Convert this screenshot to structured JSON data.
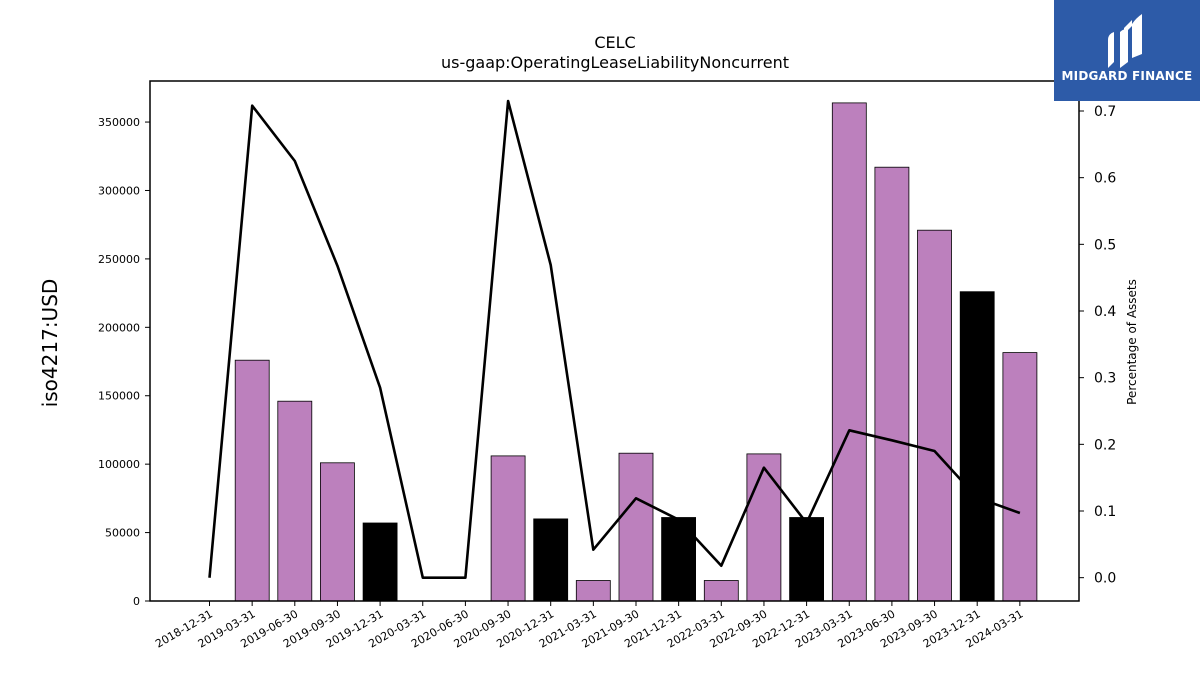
{
  "chart_data": {
    "type": "bar",
    "title": "CELC",
    "subtitle": "us-gaap:OperatingLeaseLiabilityNoncurrent",
    "ylabel": "iso4217:USD",
    "y2label": "Percentage of Assets",
    "categories": [
      "2018-12-31",
      "2019-03-31",
      "2019-06-30",
      "2019-09-30",
      "2019-12-31",
      "2020-03-31",
      "2020-06-30",
      "2020-09-30",
      "2020-12-31",
      "2021-03-31",
      "2021-09-30",
      "2021-12-31",
      "2022-03-31",
      "2022-09-30",
      "2022-12-31",
      "2023-03-31",
      "2023-06-30",
      "2023-09-30",
      "2023-12-31",
      "2024-03-31"
    ],
    "values": [
      0,
      176000,
      146000,
      101000,
      57000,
      0,
      0,
      106000,
      60000,
      15000,
      108000,
      61000,
      15000,
      107500,
      61000,
      364000,
      317000,
      271000,
      226000,
      181500
    ],
    "bar_colors": [
      "#bc80bd",
      "#bc80bd",
      "#bc80bd",
      "#bc80bd",
      "#000000",
      "#bc80bd",
      "#bc80bd",
      "#bc80bd",
      "#000000",
      "#bc80bd",
      "#bc80bd",
      "#000000",
      "#bc80bd",
      "#bc80bd",
      "#000000",
      "#bc80bd",
      "#bc80bd",
      "#bc80bd",
      "#000000",
      "#bc80bd"
    ],
    "line": {
      "name": "",
      "values": [
        0.0,
        0.708,
        0.625,
        0.468,
        0.285,
        0.0,
        0.0,
        0.715,
        0.469,
        0.042,
        0.119,
        0.087,
        0.018,
        0.165,
        0.082,
        0.221,
        0.206,
        0.19,
        0.12,
        0.097
      ]
    },
    "ylim": [
      0,
      380000
    ],
    "y2lim": [
      -0.035,
      0.745
    ],
    "yticks": [
      0,
      50000,
      100000,
      150000,
      200000,
      250000,
      300000,
      350000
    ],
    "y2ticks": [
      "0.0",
      "0.1",
      "0.2",
      "0.3",
      "0.4",
      "0.5",
      "0.6",
      "0.7"
    ],
    "grid": false,
    "legend": "none"
  },
  "logo": {
    "text": "MIDGARD FINANCE",
    "color": "#2d5ba8"
  }
}
